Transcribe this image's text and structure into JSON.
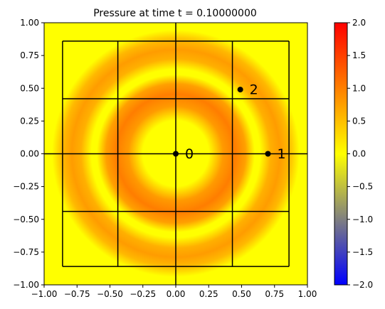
{
  "chart_data": {
    "type": "heatmap",
    "title": "Pressure at time t =      0.10000000",
    "xlim": [
      -1.0,
      1.0
    ],
    "ylim": [
      -1.0,
      1.0
    ],
    "xticks": [
      "−1.00",
      "−0.75",
      "−0.50",
      "−0.25",
      "0.00",
      "0.25",
      "0.50",
      "0.75",
      "1.00"
    ],
    "yticks": [
      "−1.00",
      "−0.75",
      "−0.50",
      "−0.25",
      "0.00",
      "0.25",
      "0.50",
      "0.75",
      "1.00"
    ],
    "colorbar": {
      "min": -2.0,
      "max": 2.0,
      "ticks": [
        "−2.0",
        "−1.5",
        "−1.0",
        "−0.5",
        "0.0",
        "0.5",
        "1.0",
        "1.5",
        "2.0"
      ],
      "colors": [
        "#0000ff",
        "#ffff00",
        "#ff0000"
      ]
    },
    "field": {
      "description_rings": [
        {
          "radius": 0.31,
          "width": 0.1,
          "peak": 0.85
        },
        {
          "radius": 0.66,
          "width": 0.1,
          "peak": 0.55
        }
      ],
      "background_value": 0.0
    },
    "grid_lines": {
      "x": [
        -0.86,
        -0.44,
        0.0,
        0.43,
        0.86
      ],
      "y": [
        -0.86,
        -0.44,
        0.0,
        0.42,
        0.86
      ]
    },
    "points": [
      {
        "label": "0",
        "x": 0.0,
        "y": 0.0
      },
      {
        "label": "1",
        "x": 0.7,
        "y": 0.0
      },
      {
        "label": "2",
        "x": 0.49,
        "y": 0.49
      }
    ]
  }
}
